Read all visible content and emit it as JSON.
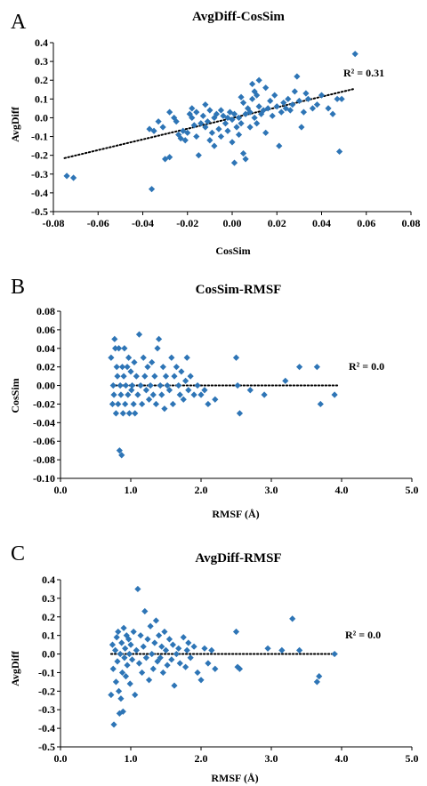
{
  "chart_data": [
    {
      "type": "scatter",
      "panel": "A",
      "title": "AvgDiff-CosSim",
      "xlabel": "CosSim",
      "ylabel": "AvgDiff",
      "xlim": [
        -0.08,
        0.08
      ],
      "ylim": [
        -0.5,
        0.4
      ],
      "xticks": [
        "-0.08",
        "-0.06",
        "-0.04",
        "-0.02",
        "0.00",
        "0.02",
        "0.04",
        "0.06",
        "0.08"
      ],
      "yticks": [
        "0.4",
        "0.3",
        "0.2",
        "0.1",
        "0.0",
        "-0.1",
        "-0.2",
        "-0.3",
        "-0.4",
        "-0.5"
      ],
      "annotation": "R² = 0.31",
      "trendline": {
        "x": [
          -0.075,
          0.055
        ],
        "y": [
          -0.215,
          0.155
        ]
      },
      "color": "#2e75b6",
      "points": [
        [
          -0.074,
          -0.31
        ],
        [
          -0.071,
          -0.32
        ],
        [
          -0.036,
          -0.38
        ],
        [
          -0.037,
          -0.06
        ],
        [
          -0.035,
          -0.07
        ],
        [
          -0.033,
          -0.02
        ],
        [
          -0.031,
          -0.05
        ],
        [
          -0.03,
          -0.22
        ],
        [
          -0.028,
          -0.21
        ],
        [
          -0.028,
          0.03
        ],
        [
          -0.026,
          0.0
        ],
        [
          -0.025,
          -0.02
        ],
        [
          -0.024,
          -0.09
        ],
        [
          -0.023,
          -0.11
        ],
        [
          -0.022,
          -0.07
        ],
        [
          -0.021,
          -0.12
        ],
        [
          -0.02,
          -0.08
        ],
        [
          -0.019,
          0.02
        ],
        [
          -0.018,
          0.05
        ],
        [
          -0.018,
          0.0
        ],
        [
          -0.017,
          -0.04
        ],
        [
          -0.016,
          0.03
        ],
        [
          -0.016,
          -0.1
        ],
        [
          -0.015,
          -0.2
        ],
        [
          -0.014,
          -0.03
        ],
        [
          -0.013,
          0.01
        ],
        [
          -0.012,
          -0.05
        ],
        [
          -0.012,
          0.07
        ],
        [
          -0.011,
          -0.02
        ],
        [
          -0.01,
          -0.12
        ],
        [
          -0.01,
          0.04
        ],
        [
          -0.009,
          -0.08
        ],
        [
          -0.008,
          0.0
        ],
        [
          -0.008,
          -0.15
        ],
        [
          -0.007,
          0.02
        ],
        [
          -0.006,
          -0.06
        ],
        [
          -0.005,
          0.04
        ],
        [
          -0.005,
          -0.1
        ],
        [
          -0.004,
          0.01
        ],
        [
          -0.003,
          -0.03
        ],
        [
          -0.002,
          0.0
        ],
        [
          -0.002,
          -0.07
        ],
        [
          -0.001,
          0.03
        ],
        [
          0.0,
          -0.01
        ],
        [
          0.0,
          -0.13
        ],
        [
          0.001,
          -0.24
        ],
        [
          0.001,
          0.02
        ],
        [
          0.002,
          -0.05
        ],
        [
          0.003,
          0.0
        ],
        [
          0.003,
          -0.09
        ],
        [
          0.004,
          0.11
        ],
        [
          0.004,
          -0.03
        ],
        [
          0.005,
          0.08
        ],
        [
          0.005,
          -0.19
        ],
        [
          0.006,
          -0.22
        ],
        [
          0.006,
          0.02
        ],
        [
          0.007,
          0.05
        ],
        [
          0.008,
          0.03
        ],
        [
          0.008,
          -0.05
        ],
        [
          0.009,
          0.18
        ],
        [
          0.009,
          0.1
        ],
        [
          0.01,
          0.0
        ],
        [
          0.01,
          0.14
        ],
        [
          0.011,
          0.12
        ],
        [
          0.011,
          -0.03
        ],
        [
          0.012,
          0.2
        ],
        [
          0.012,
          0.06
        ],
        [
          0.013,
          0.02
        ],
        [
          0.014,
          0.04
        ],
        [
          0.015,
          0.16
        ],
        [
          0.015,
          -0.08
        ],
        [
          0.016,
          0.05
        ],
        [
          0.017,
          0.09
        ],
        [
          0.018,
          0.01
        ],
        [
          0.019,
          0.12
        ],
        [
          0.02,
          0.06
        ],
        [
          0.021,
          -0.15
        ],
        [
          0.022,
          0.03
        ],
        [
          0.023,
          0.08
        ],
        [
          0.024,
          0.05
        ],
        [
          0.025,
          0.1
        ],
        [
          0.026,
          0.04
        ],
        [
          0.027,
          0.07
        ],
        [
          0.028,
          0.14
        ],
        [
          0.029,
          0.22
        ],
        [
          0.03,
          0.09
        ],
        [
          0.031,
          -0.05
        ],
        [
          0.032,
          0.03
        ],
        [
          0.033,
          0.13
        ],
        [
          0.034,
          0.1
        ],
        [
          0.036,
          0.05
        ],
        [
          0.038,
          0.07
        ],
        [
          0.04,
          0.12
        ],
        [
          0.043,
          0.05
        ],
        [
          0.045,
          0.02
        ],
        [
          0.047,
          0.1
        ],
        [
          0.048,
          -0.18
        ],
        [
          0.049,
          0.1
        ],
        [
          0.055,
          0.34
        ]
      ]
    },
    {
      "type": "scatter",
      "panel": "B",
      "title": "CosSim-RMSF",
      "xlabel": "RMSF (Å)",
      "ylabel": "CosSim",
      "xlim": [
        0,
        5
      ],
      "ylim": [
        -0.1,
        0.08
      ],
      "xticks": [
        "0.0",
        "1.0",
        "2.0",
        "3.0",
        "4.0",
        "5.0"
      ],
      "yticks": [
        "0.08",
        "0.06",
        "0.04",
        "0.02",
        "0.00",
        "-0.02",
        "-0.04",
        "-0.06",
        "-0.08",
        "-0.10"
      ],
      "annotation": "R² = 0.0",
      "trendline": {
        "x": [
          0.78,
          3.95
        ],
        "y": [
          0.0,
          0.0
        ]
      },
      "color": "#2e75b6",
      "points": [
        [
          0.72,
          0.03
        ],
        [
          0.74,
          -0.02
        ],
        [
          0.75,
          0.0
        ],
        [
          0.76,
          -0.01
        ],
        [
          0.77,
          0.05
        ],
        [
          0.78,
          0.04
        ],
        [
          0.79,
          -0.03
        ],
        [
          0.8,
          0.02
        ],
        [
          0.81,
          0.01
        ],
        [
          0.82,
          -0.02
        ],
        [
          0.83,
          0.04
        ],
        [
          0.84,
          -0.07
        ],
        [
          0.85,
          0.0
        ],
        [
          0.86,
          -0.01
        ],
        [
          0.87,
          -0.075
        ],
        [
          0.88,
          0.02
        ],
        [
          0.89,
          -0.03
        ],
        [
          0.9,
          0.01
        ],
        [
          0.91,
          0.04
        ],
        [
          0.92,
          -0.02
        ],
        [
          0.93,
          0.0
        ],
        [
          0.95,
          0.02
        ],
        [
          0.96,
          -0.01
        ],
        [
          0.97,
          0.03
        ],
        [
          0.98,
          -0.03
        ],
        [
          1.0,
          0.015
        ],
        [
          1.01,
          -0.005
        ],
        [
          1.02,
          0.0
        ],
        [
          1.04,
          -0.02
        ],
        [
          1.05,
          0.025
        ],
        [
          1.06,
          -0.03
        ],
        [
          1.08,
          0.01
        ],
        [
          1.1,
          -0.01
        ],
        [
          1.12,
          0.055
        ],
        [
          1.14,
          0.0
        ],
        [
          1.16,
          -0.02
        ],
        [
          1.18,
          0.03
        ],
        [
          1.2,
          0.01
        ],
        [
          1.22,
          -0.005
        ],
        [
          1.24,
          0.02
        ],
        [
          1.26,
          -0.015
        ],
        [
          1.28,
          0.0
        ],
        [
          1.3,
          0.025
        ],
        [
          1.32,
          -0.01
        ],
        [
          1.34,
          0.01
        ],
        [
          1.36,
          -0.02
        ],
        [
          1.38,
          0.04
        ],
        [
          1.4,
          0.05
        ],
        [
          1.42,
          0.0
        ],
        [
          1.44,
          -0.01
        ],
        [
          1.46,
          0.02
        ],
        [
          1.48,
          -0.025
        ],
        [
          1.5,
          0.01
        ],
        [
          1.52,
          0.0
        ],
        [
          1.55,
          -0.005
        ],
        [
          1.58,
          0.03
        ],
        [
          1.6,
          -0.02
        ],
        [
          1.62,
          0.01
        ],
        [
          1.65,
          0.02
        ],
        [
          1.68,
          0.0
        ],
        [
          1.7,
          -0.01
        ],
        [
          1.72,
          0.015
        ],
        [
          1.75,
          -0.015
        ],
        [
          1.78,
          0.005
        ],
        [
          1.8,
          0.03
        ],
        [
          1.82,
          -0.005
        ],
        [
          1.85,
          0.01
        ],
        [
          1.9,
          -0.01
        ],
        [
          1.95,
          0.0
        ],
        [
          2.0,
          -0.01
        ],
        [
          2.05,
          -0.005
        ],
        [
          2.1,
          -0.02
        ],
        [
          2.2,
          -0.015
        ],
        [
          2.5,
          0.03
        ],
        [
          2.52,
          0.0
        ],
        [
          2.55,
          -0.03
        ],
        [
          2.7,
          -0.005
        ],
        [
          2.9,
          -0.01
        ],
        [
          3.2,
          0.005
        ],
        [
          3.4,
          0.02
        ],
        [
          3.65,
          0.02
        ],
        [
          3.7,
          -0.02
        ],
        [
          3.9,
          -0.01
        ]
      ]
    },
    {
      "type": "scatter",
      "panel": "C",
      "title": "AvgDiff-RMSF",
      "xlabel": "RMSF (Å)",
      "ylabel": "AvgDiff",
      "xlim": [
        0,
        5
      ],
      "ylim": [
        -0.5,
        0.4
      ],
      "xticks": [
        "0.0",
        "1.0",
        "2.0",
        "3.0",
        "4.0",
        "5.0"
      ],
      "yticks": [
        "0.4",
        "0.3",
        "0.2",
        "0.1",
        "0.0",
        "-0.1",
        "-0.2",
        "-0.3",
        "-0.4",
        "-0.5"
      ],
      "annotation": "R² = 0.0",
      "trendline": {
        "x": [
          0.72,
          3.95
        ],
        "y": [
          0.0,
          0.0
        ]
      },
      "color": "#2e75b6",
      "points": [
        [
          0.72,
          -0.22
        ],
        [
          0.74,
          0.05
        ],
        [
          0.75,
          -0.08
        ],
        [
          0.76,
          -0.38
        ],
        [
          0.78,
          0.02
        ],
        [
          0.79,
          -0.15
        ],
        [
          0.8,
          0.09
        ],
        [
          0.81,
          -0.04
        ],
        [
          0.82,
          0.12
        ],
        [
          0.83,
          -0.2
        ],
        [
          0.84,
          -0.32
        ],
        [
          0.85,
          0.0
        ],
        [
          0.86,
          -0.24
        ],
        [
          0.87,
          0.06
        ],
        [
          0.88,
          -0.1
        ],
        [
          0.89,
          -0.31
        ],
        [
          0.9,
          0.14
        ],
        [
          0.91,
          -0.02
        ],
        [
          0.92,
          0.03
        ],
        [
          0.93,
          -0.12
        ],
        [
          0.94,
          0.1
        ],
        [
          0.95,
          -0.06
        ],
        [
          0.97,
          0.08
        ],
        [
          0.98,
          0.0
        ],
        [
          0.99,
          -0.16
        ],
        [
          1.0,
          0.05
        ],
        [
          1.02,
          -0.03
        ],
        [
          1.04,
          0.12
        ],
        [
          1.06,
          -0.22
        ],
        [
          1.08,
          0.02
        ],
        [
          1.1,
          0.35
        ],
        [
          1.12,
          -0.05
        ],
        [
          1.14,
          0.1
        ],
        [
          1.16,
          -0.1
        ],
        [
          1.18,
          0.04
        ],
        [
          1.2,
          0.23
        ],
        [
          1.22,
          -0.02
        ],
        [
          1.24,
          0.08
        ],
        [
          1.26,
          -0.14
        ],
        [
          1.28,
          0.15
        ],
        [
          1.3,
          0.0
        ],
        [
          1.32,
          -0.08
        ],
        [
          1.34,
          0.06
        ],
        [
          1.36,
          0.18
        ],
        [
          1.38,
          -0.04
        ],
        [
          1.4,
          0.1
        ],
        [
          1.42,
          -0.02
        ],
        [
          1.44,
          0.04
        ],
        [
          1.46,
          -0.1
        ],
        [
          1.48,
          0.12
        ],
        [
          1.5,
          0.02
        ],
        [
          1.52,
          -0.06
        ],
        [
          1.55,
          0.08
        ],
        [
          1.58,
          -0.03
        ],
        [
          1.6,
          0.05
        ],
        [
          1.62,
          -0.17
        ],
        [
          1.65,
          0.0
        ],
        [
          1.68,
          0.03
        ],
        [
          1.7,
          -0.05
        ],
        [
          1.75,
          0.09
        ],
        [
          1.78,
          -0.07
        ],
        [
          1.8,
          0.02
        ],
        [
          1.82,
          0.06
        ],
        [
          1.85,
          -0.02
        ],
        [
          1.9,
          0.04
        ],
        [
          1.95,
          -0.1
        ],
        [
          2.0,
          -0.14
        ],
        [
          2.05,
          0.03
        ],
        [
          2.1,
          -0.05
        ],
        [
          2.15,
          0.02
        ],
        [
          2.2,
          -0.08
        ],
        [
          2.5,
          0.12
        ],
        [
          2.52,
          -0.07
        ],
        [
          2.55,
          -0.08
        ],
        [
          2.95,
          0.03
        ],
        [
          3.15,
          0.02
        ],
        [
          3.3,
          0.19
        ],
        [
          3.4,
          0.02
        ],
        [
          3.65,
          -0.15
        ],
        [
          3.68,
          -0.12
        ],
        [
          3.9,
          0.0
        ]
      ]
    }
  ]
}
